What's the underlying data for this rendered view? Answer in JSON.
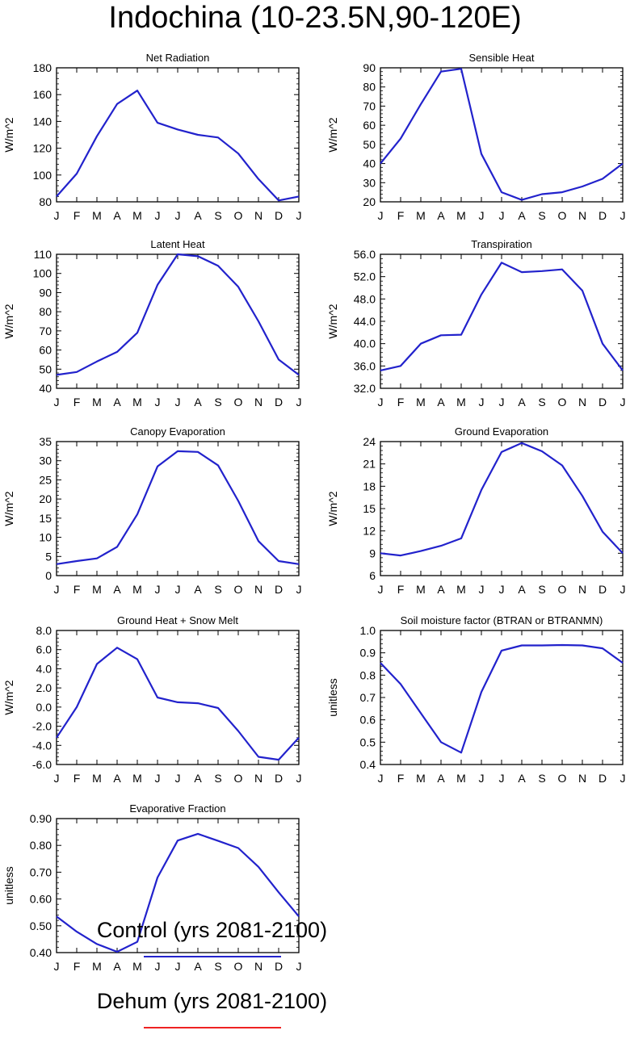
{
  "title": "Indochina (10-23.5N,90-120E)",
  "colors": {
    "control": "#2222cc",
    "dehum": "#ee2222",
    "axis": "#000000"
  },
  "legend": {
    "control_label": "Control (yrs 2081-2100)",
    "dehum_label": "Dehum (yrs 2081-2100)"
  },
  "chart_data": [
    {
      "type": "line",
      "title": "Net Radiation",
      "ylabel": "W/m^2",
      "categories": [
        "J",
        "F",
        "M",
        "A",
        "M",
        "J",
        "J",
        "A",
        "S",
        "O",
        "N",
        "D",
        "J"
      ],
      "ylim": [
        80,
        180
      ],
      "yticks": [
        "80",
        "100",
        "120",
        "140",
        "160",
        "180"
      ],
      "grid": false,
      "series": [
        {
          "name": "Control (yrs 2081-2100)",
          "color": "#2222cc",
          "values": [
            84,
            101,
            129,
            153,
            163,
            139,
            134,
            130,
            128,
            116,
            97,
            81,
            84
          ]
        }
      ]
    },
    {
      "type": "line",
      "title": "Sensible Heat",
      "ylabel": "W/m^2",
      "categories": [
        "J",
        "F",
        "M",
        "A",
        "M",
        "J",
        "J",
        "A",
        "S",
        "O",
        "N",
        "D",
        "J"
      ],
      "ylim": [
        20,
        90
      ],
      "yticks": [
        "20",
        "30",
        "40",
        "50",
        "60",
        "70",
        "80",
        "90"
      ],
      "grid": false,
      "series": [
        {
          "name": "Control (yrs 2081-2100)",
          "color": "#2222cc",
          "values": [
            40,
            53,
            71,
            88,
            89.5,
            45,
            25,
            21,
            24,
            25,
            28,
            32,
            40
          ]
        }
      ]
    },
    {
      "type": "line",
      "title": "Latent Heat",
      "ylabel": "W/m^2",
      "categories": [
        "J",
        "F",
        "M",
        "A",
        "M",
        "J",
        "J",
        "A",
        "S",
        "O",
        "N",
        "D",
        "J"
      ],
      "ylim": [
        40,
        110
      ],
      "yticks": [
        "40",
        "50",
        "60",
        "70",
        "80",
        "90",
        "100",
        "110"
      ],
      "grid": false,
      "series": [
        {
          "name": "Control (yrs 2081-2100)",
          "color": "#2222cc",
          "values": [
            47,
            48.5,
            54,
            59,
            69,
            94,
            110,
            109,
            104,
            93,
            75,
            55,
            47
          ]
        }
      ]
    },
    {
      "type": "line",
      "title": "Transpiration",
      "ylabel": "W/m^2",
      "categories": [
        "J",
        "F",
        "M",
        "A",
        "M",
        "J",
        "J",
        "A",
        "S",
        "O",
        "N",
        "D",
        "J"
      ],
      "ylim": [
        32,
        56
      ],
      "yticks": [
        "32.0",
        "36.0",
        "40.0",
        "44.0",
        "48.0",
        "52.0",
        "56.0"
      ],
      "grid": false,
      "series": [
        {
          "name": "Control (yrs 2081-2100)",
          "color": "#2222cc",
          "values": [
            35.2,
            36,
            40,
            41.5,
            41.6,
            48.8,
            54.5,
            52.8,
            53,
            53.3,
            49.5,
            40,
            35.2
          ]
        }
      ]
    },
    {
      "type": "line",
      "title": "Canopy Evaporation",
      "ylabel": "W/m^2",
      "categories": [
        "J",
        "F",
        "M",
        "A",
        "M",
        "J",
        "J",
        "A",
        "S",
        "O",
        "N",
        "D",
        "J"
      ],
      "ylim": [
        0,
        35
      ],
      "yticks": [
        "0",
        "5",
        "10",
        "15",
        "20",
        "25",
        "30",
        "35"
      ],
      "grid": false,
      "series": [
        {
          "name": "Control (yrs 2081-2100)",
          "color": "#2222cc",
          "values": [
            3,
            3.8,
            4.5,
            7.5,
            16,
            28.5,
            32.5,
            32.3,
            28.8,
            19.5,
            9,
            3.8,
            3
          ]
        }
      ]
    },
    {
      "type": "line",
      "title": "Ground Evaporation",
      "ylabel": "W/m^2",
      "categories": [
        "J",
        "F",
        "M",
        "A",
        "M",
        "J",
        "J",
        "A",
        "S",
        "O",
        "N",
        "D",
        "J"
      ],
      "ylim": [
        6,
        24
      ],
      "yticks": [
        "6",
        "9",
        "12",
        "15",
        "18",
        "21",
        "24"
      ],
      "grid": false,
      "series": [
        {
          "name": "Control (yrs 2081-2100)",
          "color": "#2222cc",
          "values": [
            9,
            8.7,
            9.3,
            10,
            11,
            17.5,
            22.6,
            23.8,
            22.7,
            20.8,
            16.7,
            11.9,
            9
          ]
        }
      ]
    },
    {
      "type": "line",
      "title": "Ground Heat + Snow Melt",
      "ylabel": "W/m^2",
      "categories": [
        "J",
        "F",
        "M",
        "A",
        "M",
        "J",
        "J",
        "A",
        "S",
        "O",
        "N",
        "D",
        "J"
      ],
      "ylim": [
        -6,
        8
      ],
      "yticks": [
        "-6.0",
        "-4.0",
        "-2.0",
        "0.0",
        "2.0",
        "4.0",
        "6.0",
        "8.0"
      ],
      "grid": false,
      "series": [
        {
          "name": "Control (yrs 2081-2100)",
          "color": "#2222cc",
          "values": [
            -3.2,
            0,
            4.5,
            6.2,
            5,
            1,
            0.5,
            0.4,
            -0.1,
            -2.5,
            -5.2,
            -5.5,
            -3.2
          ]
        }
      ]
    },
    {
      "type": "line",
      "title": "Soil moisture factor (BTRAN or BTRANMN)",
      "ylabel": "unitless",
      "categories": [
        "J",
        "F",
        "M",
        "A",
        "M",
        "J",
        "J",
        "A",
        "S",
        "O",
        "N",
        "D",
        "J"
      ],
      "ylim": [
        0.4,
        1.0
      ],
      "yticks": [
        "0.4",
        "0.5",
        "0.6",
        "0.7",
        "0.8",
        "0.9",
        "1.0"
      ],
      "grid": false,
      "series": [
        {
          "name": "Control (yrs 2081-2100)",
          "color": "#2222cc",
          "values": [
            0.855,
            0.76,
            0.63,
            0.5,
            0.453,
            0.725,
            0.91,
            0.933,
            0.933,
            0.935,
            0.933,
            0.92,
            0.855
          ]
        }
      ]
    },
    {
      "type": "line",
      "title": "Evaporative Fraction",
      "ylabel": "unitless",
      "categories": [
        "J",
        "F",
        "M",
        "A",
        "M",
        "J",
        "J",
        "A",
        "S",
        "O",
        "N",
        "D",
        "J"
      ],
      "ylim": [
        0.4,
        0.9
      ],
      "yticks": [
        "0.40",
        "0.50",
        "0.60",
        "0.70",
        "0.80",
        "0.90"
      ],
      "grid": false,
      "series": [
        {
          "name": "Control (yrs 2081-2100)",
          "color": "#2222cc",
          "values": [
            0.535,
            0.478,
            0.432,
            0.403,
            0.44,
            0.68,
            0.818,
            0.843,
            0.817,
            0.79,
            0.72,
            0.625,
            0.535
          ]
        }
      ]
    }
  ]
}
